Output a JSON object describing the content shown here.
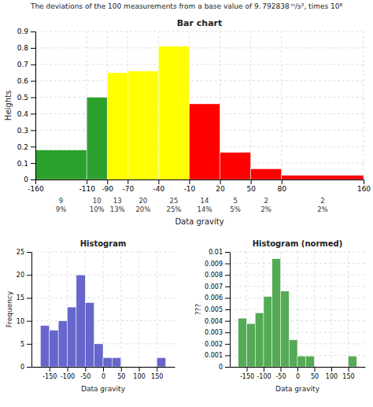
{
  "title": "The deviations of the 100 measurements from a base value of 9. 792838 ᵐ/s², times 10⁸",
  "chart_data": [
    {
      "type": "bar",
      "title": "Bar chart",
      "xlabel": "Data gravity",
      "ylabel": "Heights",
      "bins": [
        -160,
        -110,
        -90,
        -70,
        -40,
        -10,
        20,
        50,
        80,
        160
      ],
      "values": [
        0.18,
        0.5,
        0.65,
        0.66,
        0.81,
        0.46,
        0.165,
        0.065,
        0.025
      ],
      "colors": [
        "#2ca02c",
        "#2ca02c",
        "#ffff00",
        "#ffff00",
        "#ffff00",
        "#ff0000",
        "#ff0000",
        "#ff0000",
        "#ff0000"
      ],
      "counts": [
        9,
        10,
        13,
        20,
        25,
        14,
        5,
        2,
        2
      ],
      "percent_labels": [
        "9%",
        "10%",
        "13%",
        "20%",
        "25%",
        "14%",
        "5%",
        "2%",
        "2%"
      ],
      "xlim": [
        -160,
        160
      ],
      "xticks": [
        -160,
        -110,
        -90,
        -70,
        -40,
        -10,
        20,
        50,
        80,
        160
      ],
      "ylim": [
        0,
        0.9
      ],
      "yticks": [
        0,
        0.1,
        0.2,
        0.3,
        0.4,
        0.5,
        0.6,
        0.7,
        0.8,
        0.9
      ],
      "grid": true
    },
    {
      "type": "histogram",
      "title": "Histogram",
      "xlabel": "Data gravity",
      "ylabel": "Frequency",
      "bins": [
        -175,
        -150,
        -125,
        -100,
        -75,
        -50,
        -25,
        0,
        25,
        50,
        75,
        100,
        125,
        150,
        175
      ],
      "values": [
        9,
        8,
        10,
        13,
        20,
        14,
        5,
        2,
        2,
        0,
        0,
        0,
        0,
        2
      ],
      "color": "#6666cc",
      "xlim": [
        -200,
        200
      ],
      "xticks": [
        -150,
        -100,
        -50,
        0,
        50,
        100,
        150
      ],
      "ylim": [
        0,
        25
      ],
      "yticks": [
        0,
        5,
        10,
        15,
        20,
        25
      ],
      "grid": true
    },
    {
      "type": "histogram",
      "title": "Histogram (normed)",
      "xlabel": "Data gravity",
      "ylabel": "???",
      "bins": [
        -175,
        -150,
        -125,
        -100,
        -75,
        -50,
        -25,
        0,
        25,
        50,
        75,
        100,
        125,
        150,
        175
      ],
      "values": [
        0.004235294117647059,
        0.003764705882352941,
        0.004705882352941176,
        0.006117647058823529,
        0.009411764705882354,
        0.006588235294117647,
        0.002352941176470588,
        0.0009411764705882353,
        0.0009411764705882353,
        0,
        0,
        0,
        0,
        0.0009411764705882353
      ],
      "color": "#55aa55",
      "xlim": [
        -200,
        200
      ],
      "xticks": [
        -150,
        -100,
        -50,
        0,
        50,
        100,
        150
      ],
      "ylim": [
        0,
        0.01
      ],
      "yticks": [
        0,
        0.001,
        0.002,
        0.003,
        0.004,
        0.005,
        0.006,
        0.007,
        0.008,
        0.009,
        0.01
      ],
      "grid": true
    }
  ]
}
